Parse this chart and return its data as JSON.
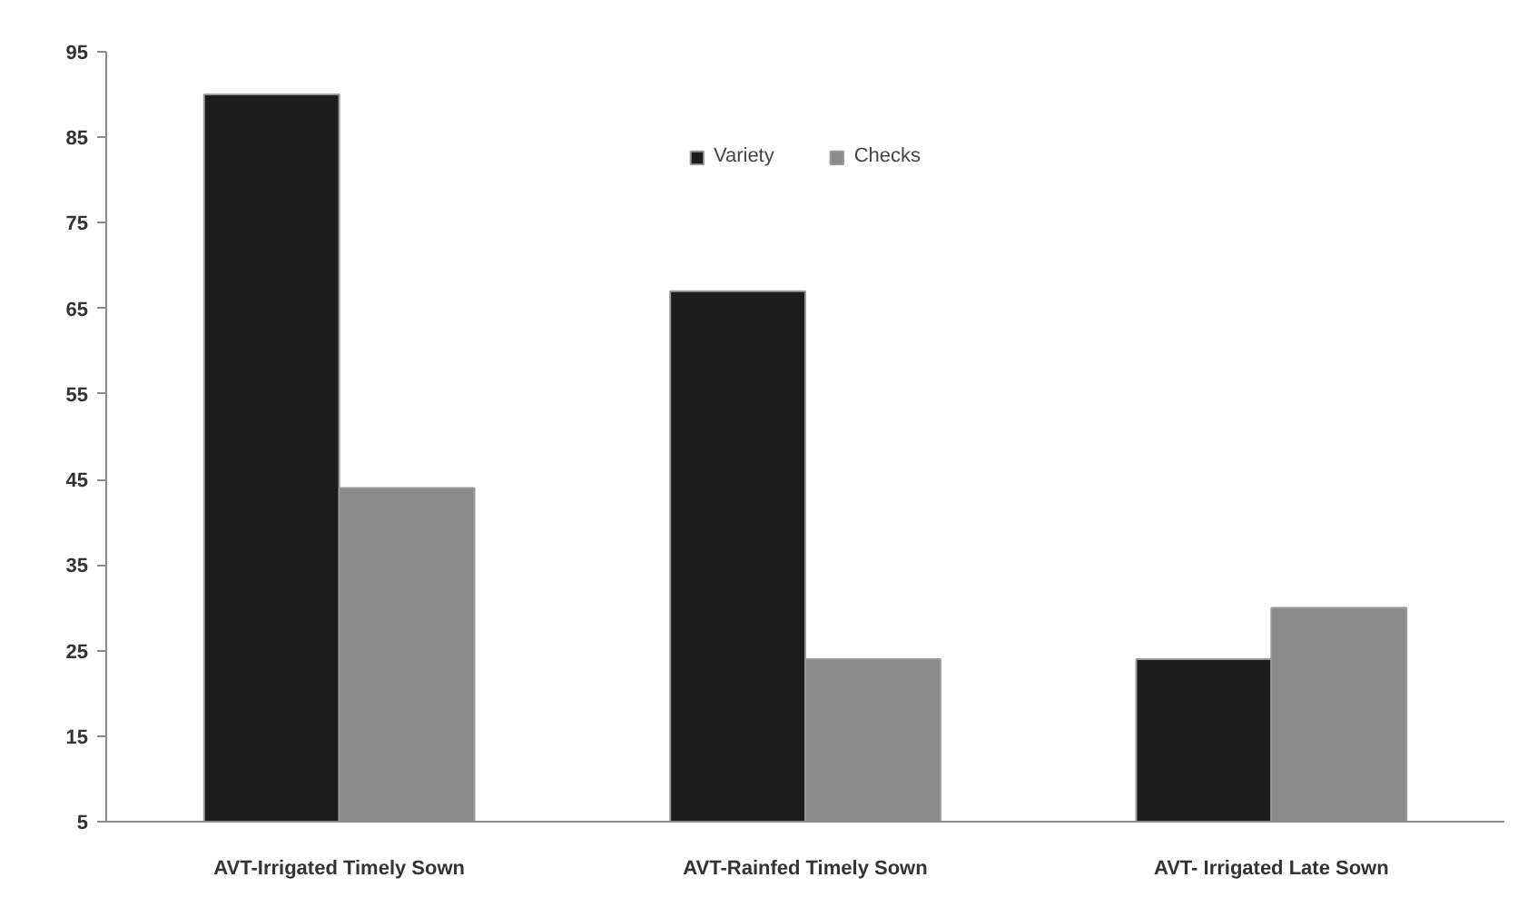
{
  "chart_data": {
    "type": "bar",
    "categories": [
      "AVT-Irrigated Timely Sown",
      "AVT-Rainfed Timely Sown",
      "AVT- Irrigated Late Sown"
    ],
    "series": [
      {
        "name": "Variety",
        "color": "#1c1c1c",
        "values": [
          90,
          67,
          24
        ]
      },
      {
        "name": "Checks",
        "color": "#8a8a8a",
        "values": [
          44,
          24,
          30
        ]
      }
    ],
    "ylim": [
      5,
      95
    ],
    "yticks": [
      5,
      15,
      25,
      35,
      45,
      55,
      65,
      75,
      85,
      95
    ],
    "legend": "top"
  }
}
